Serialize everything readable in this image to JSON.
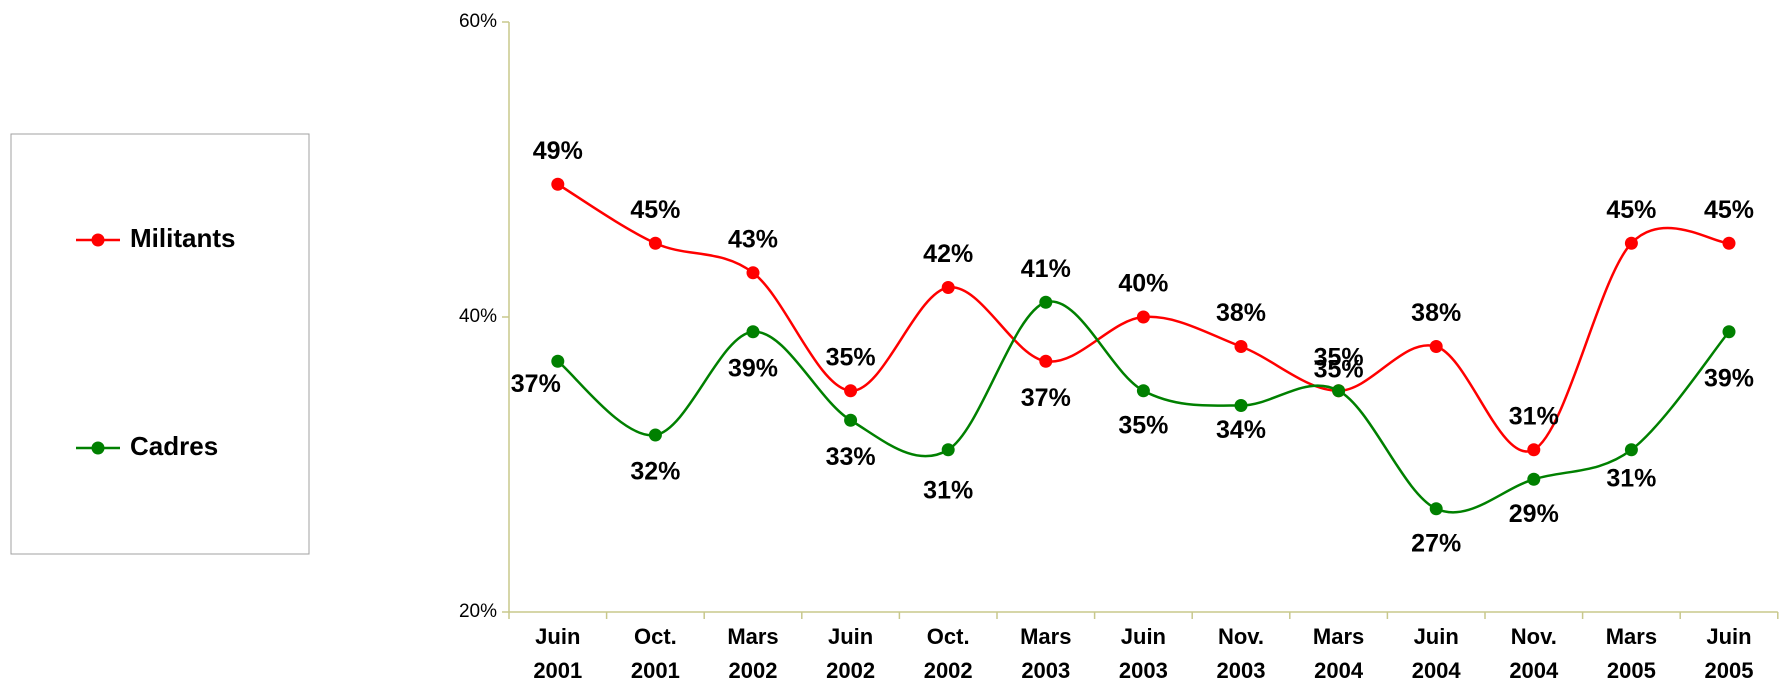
{
  "chart_data": {
    "type": "line",
    "categories": [
      "Juin 2001",
      "Oct. 2001",
      "Mars 2002",
      "Juin 2002",
      "Oct. 2002",
      "Mars 2003",
      "Juin 2003",
      "Nov. 2003",
      "Mars 2004",
      "Juin 2004",
      "Nov. 2004",
      "Mars 2005",
      "Juin 2005"
    ],
    "series": [
      {
        "name": "Militants",
        "color": "#ff0000",
        "values": [
          49,
          45,
          43,
          35,
          42,
          37,
          40,
          38,
          35,
          38,
          31,
          45,
          45
        ],
        "value_labels": [
          "49%",
          "45%",
          "43%",
          "35%",
          "42%",
          "37%",
          "40%",
          "38%",
          "35%",
          "38%",
          "31%",
          "45%",
          "45%"
        ]
      },
      {
        "name": "Cadres",
        "color": "#008000",
        "values": [
          37,
          32,
          39,
          33,
          31,
          41,
          35,
          34,
          35,
          27,
          29,
          31,
          39
        ],
        "value_labels": [
          "37%",
          "32%",
          "39%",
          "33%",
          "31%",
          "41%",
          "35%",
          "34%",
          "35%",
          "27%",
          "29%",
          "31%",
          "39%"
        ]
      }
    ],
    "ylim": [
      20,
      60
    ],
    "yticks": [
      {
        "value": 20,
        "label": "20%"
      },
      {
        "value": 40,
        "label": "40%"
      },
      {
        "value": 60,
        "label": "60%"
      }
    ],
    "grid": false,
    "legend": "left"
  }
}
